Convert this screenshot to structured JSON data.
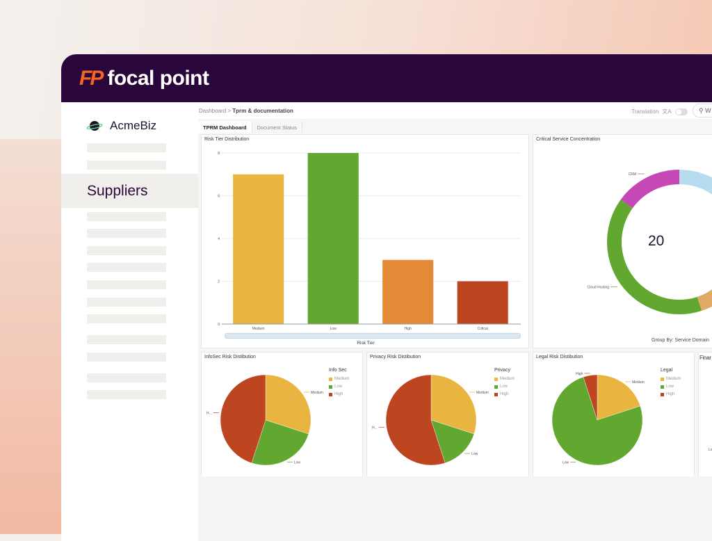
{
  "header": {
    "logo_mark": "FP",
    "brand": "focal point"
  },
  "sidebar": {
    "org": "AcmeBiz",
    "active_item": "Suppliers"
  },
  "breadcrumb": {
    "root": "Dashboard",
    "sep": ">",
    "current": "Tprm & documentation"
  },
  "toolbar": {
    "translation": "Translation",
    "translate_icon": "文A",
    "search_placeholder": "W"
  },
  "tabs": [
    {
      "label": "TPRM Dashboard",
      "active": true
    },
    {
      "label": "Document Status",
      "active": false
    }
  ],
  "colors": {
    "medium": "#e9b540",
    "low": "#62a830",
    "high": "#e28a35",
    "critical": "#bd4620",
    "crm": "#c548b4",
    "other": "#b7dcef",
    "pie_high": "#bd4620"
  },
  "chart_data": [
    {
      "type": "bar",
      "title": "Risk Tier Distribution",
      "xlabel": "Risk Tier",
      "ylabel": "",
      "categories": [
        "Medium",
        "Low",
        "High",
        "Critical"
      ],
      "values": [
        7,
        8,
        3,
        2
      ],
      "yticks": [
        "0",
        "2",
        "4",
        "6",
        "8"
      ],
      "ylim": [
        0,
        8
      ],
      "grid": true
    },
    {
      "type": "pie",
      "title": "Critical Service Concentration",
      "subtitle": "Group By: Service Domain",
      "center_total": "20",
      "donut": true,
      "series": [
        {
          "name": "",
          "value": 4,
          "color": "#b7dcef"
        },
        {
          "name": "",
          "value": 5,
          "color": "#e2a865"
        },
        {
          "name": "Cloud Hosting",
          "value": 8,
          "color": "#62a830"
        },
        {
          "name": "CRM",
          "value": 3,
          "color": "#c548b4"
        }
      ]
    },
    {
      "type": "pie",
      "title": "InfoSec Risk Distibution",
      "legend_title": "Info Sec",
      "legend": [
        "Medium",
        "Low",
        "High"
      ],
      "labels": [
        "Medium",
        "Low",
        "H..."
      ],
      "values": [
        6,
        5,
        9
      ]
    },
    {
      "type": "pie",
      "title": "Privacy Risk Distibution",
      "legend_title": "Privacy",
      "legend": [
        "Medium",
        "Low",
        "High"
      ],
      "labels": [
        "Medium",
        "Low",
        "H..."
      ],
      "values": [
        6,
        3,
        11
      ]
    },
    {
      "type": "pie",
      "title": "Legal Risk Distibution",
      "legend_title": "Legal",
      "legend": [
        "Medium",
        "Low",
        "High"
      ],
      "labels": [
        "Medium",
        "Low",
        "High"
      ],
      "values": [
        4,
        15,
        1
      ]
    },
    {
      "type": "pie",
      "title": "Finar",
      "labels": [
        "Lo"
      ]
    }
  ]
}
